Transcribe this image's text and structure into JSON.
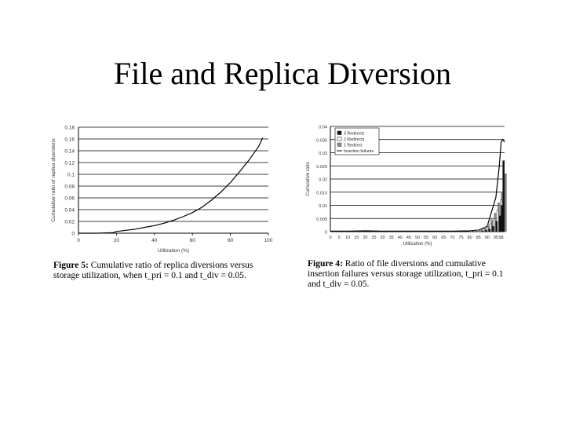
{
  "slide": {
    "title": "File and Replica Diversion"
  },
  "colors": {
    "axis": "#000000",
    "grid": "#000000",
    "line": "#000000",
    "bar_dark": "#111111",
    "bar_gray": "#8a8a8a",
    "background": "#ffffff"
  },
  "captions": {
    "left": {
      "label": "Figure 5:",
      "text": "Cumulative ratio of replica diversions versus storage utilization, when t_pri = 0.1 and t_div = 0.05."
    },
    "right": {
      "label": "Figure 4:",
      "text": "Ratio of file diversions and cumulative insertion failures versus storage utilization, t_pri = 0.1 and t_div = 0.05."
    }
  },
  "chart_data": [
    {
      "type": "line",
      "title": "",
      "xlabel": "Utilization (%)",
      "ylabel": "Cumulative ratio of replica diversions",
      "xlim": [
        0,
        100
      ],
      "ylim": [
        0,
        0.18
      ],
      "x_ticks": [
        "0",
        "20",
        "40",
        "60",
        "80",
        "100"
      ],
      "y_ticks": [
        "0",
        "0.02",
        "0.04",
        "0.06",
        "0.08",
        "0.1",
        "0.12",
        "0.14",
        "0.16",
        "0.18"
      ],
      "grid": "horizontal",
      "series": [
        {
          "x": [
            0,
            10,
            18,
            20,
            25,
            30,
            35,
            40,
            45,
            50,
            55,
            60,
            65,
            70,
            75,
            80,
            85,
            90,
            95,
            97
          ],
          "y": [
            0,
            0,
            0.001,
            0.003,
            0.005,
            0.007,
            0.01,
            0.013,
            0.017,
            0.022,
            0.028,
            0.035,
            0.044,
            0.056,
            0.07,
            0.086,
            0.105,
            0.125,
            0.148,
            0.162
          ]
        }
      ]
    },
    {
      "type": "bar",
      "title": "",
      "xlabel": "Utilization (%)",
      "ylabel": "Cumulative ratio",
      "xlim": [
        0,
        100
      ],
      "ylim": [
        0,
        0.04
      ],
      "x_ticks": [
        "0",
        "5",
        "10",
        "15",
        "20",
        "25",
        "30",
        "35",
        "40",
        "45",
        "50",
        "55",
        "60",
        "65",
        "70",
        "75",
        "80",
        "85",
        "90",
        "95",
        "98"
      ],
      "y_ticks": [
        "0",
        "0.005",
        "0.01",
        "0.015",
        "0.02",
        "0.025",
        "0.03",
        "0.035",
        "0.04"
      ],
      "grid": "horizontal",
      "legend_position": "top-left",
      "legend": [
        "3 Redirects",
        "2 Redirects",
        "1 Redirect",
        "Insertion failures"
      ],
      "series": [
        {
          "name": "3 Redirects",
          "x": [
            88,
            90,
            92,
            94,
            96,
            98,
            99,
            100
          ],
          "y": [
            0.0003,
            0.0006,
            0.001,
            0.002,
            0.004,
            0.006,
            0.01,
            0.027
          ]
        },
        {
          "name": "2 Redirects",
          "x": [
            86,
            88,
            90,
            92,
            94,
            96,
            98
          ],
          "y": [
            0.0005,
            0.001,
            0.0018,
            0.003,
            0.005,
            0.008,
            0.012
          ]
        },
        {
          "name": "1 Redirect",
          "x": [
            80,
            82,
            84,
            86,
            88,
            90,
            92,
            94,
            96,
            98,
            100
          ],
          "y": [
            0.0002,
            0.0004,
            0.0007,
            0.001,
            0.0017,
            0.0027,
            0.0045,
            0.007,
            0.011,
            0.015,
            0.022
          ]
        },
        {
          "name": "Insertion failures",
          "x": [
            0,
            10,
            20,
            30,
            40,
            50,
            60,
            70,
            80,
            85,
            90,
            95,
            97,
            98,
            99,
            100
          ],
          "y": [
            0.0002,
            0.0002,
            0.0003,
            0.0002,
            0.0002,
            0.0002,
            0.0002,
            0.0002,
            0.0003,
            0.0006,
            0.002,
            0.013,
            0.025,
            0.034,
            0.035,
            0.034
          ]
        }
      ]
    }
  ]
}
